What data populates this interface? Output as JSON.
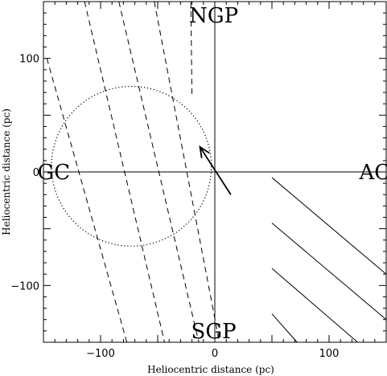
{
  "chart_data": {
    "type": "line",
    "xlabel": "Heliocentric distance (pc)",
    "ylabel": "Heliocentric distance (pc)",
    "xlim": [
      -150,
      150
    ],
    "ylim": [
      -150,
      150
    ],
    "x_ticks": [
      -100,
      0,
      100
    ],
    "x_tick_labels": [
      "−100",
      "0",
      "100"
    ],
    "y_ticks": [
      -100,
      0,
      100
    ],
    "y_tick_labels": [
      "−100",
      "0",
      "100"
    ],
    "grid": false,
    "annotations": [
      {
        "text": "NGP",
        "x": -1,
        "y": 138
      },
      {
        "text": "SGP",
        "x": -1,
        "y": -140
      },
      {
        "text": "GC",
        "x": -141,
        "y": 0
      },
      {
        "text": "AC",
        "x": 140,
        "y": 0
      }
    ],
    "reference_lines": [
      {
        "orientation": "horizontal",
        "value": 0
      },
      {
        "orientation": "vertical",
        "value": 0
      }
    ],
    "circle": {
      "center": [
        -73,
        5
      ],
      "radius": 70,
      "style": "dotted"
    },
    "arrow": {
      "from": [
        14,
        -20
      ],
      "to": [
        -13,
        22
      ]
    },
    "dashed_lines": [
      [
        [
          -147,
          100
        ],
        [
          -77,
          -150
        ]
      ],
      [
        [
          -114,
          150
        ],
        [
          -44,
          -150
        ]
      ],
      [
        [
          -84,
          150
        ],
        [
          -14,
          -150
        ]
      ],
      [
        [
          -53,
          150
        ],
        [
          4,
          -150
        ]
      ],
      [
        [
          -21,
          150
        ],
        [
          -20,
          68
        ]
      ]
    ],
    "solid_lines": [
      [
        [
          50,
          -5
        ],
        [
          150,
          -90
        ]
      ],
      [
        [
          50,
          -45
        ],
        [
          150,
          -130
        ]
      ],
      [
        [
          50,
          -85
        ],
        [
          125,
          -150
        ]
      ],
      [
        [
          50,
          -125
        ],
        [
          72,
          -150
        ]
      ]
    ]
  }
}
